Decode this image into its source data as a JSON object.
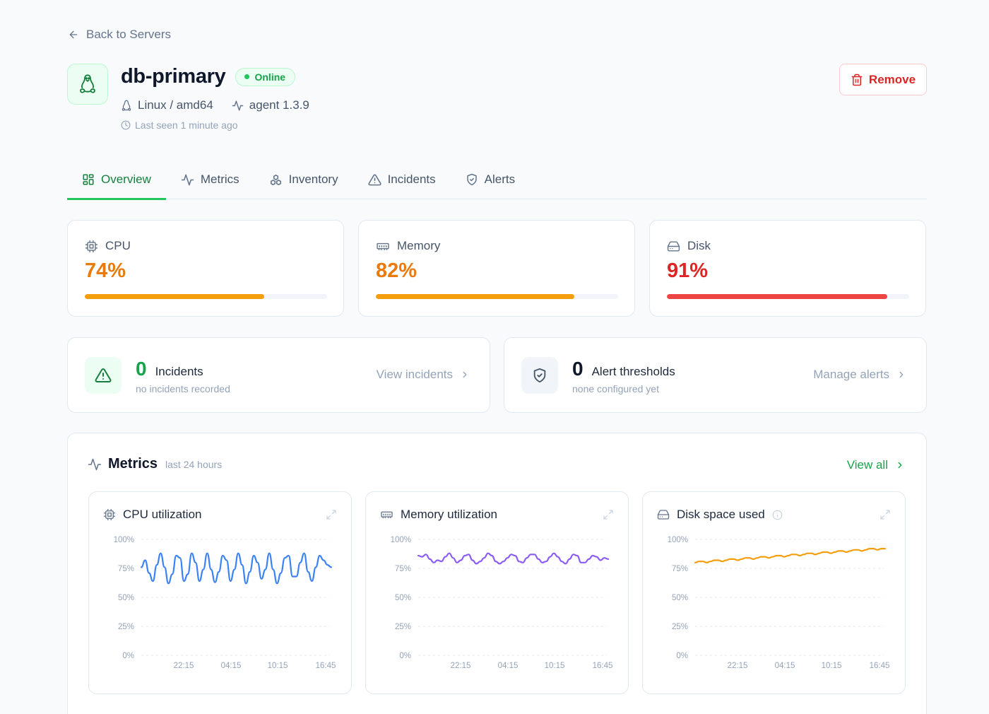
{
  "back_link": "Back to Servers",
  "server": {
    "name": "db-primary",
    "status": "Online",
    "os": "Linux / amd64",
    "agent": "agent 1.3.9",
    "last_seen": "Last seen 1 minute ago"
  },
  "actions": {
    "remove": "Remove"
  },
  "tabs": [
    {
      "label": "Overview",
      "icon": "layout-grid-icon",
      "active": true
    },
    {
      "label": "Metrics",
      "icon": "activity-icon"
    },
    {
      "label": "Inventory",
      "icon": "boxes-icon"
    },
    {
      "label": "Incidents",
      "icon": "alert-triangle-icon"
    },
    {
      "label": "Alerts",
      "icon": "shield-icon"
    }
  ],
  "resources": {
    "cpu": {
      "label": "CPU",
      "value": "74%",
      "percent": 74,
      "color": "#ea7a0c",
      "bar_color": "#f59e0b"
    },
    "memory": {
      "label": "Memory",
      "value": "82%",
      "percent": 82,
      "color": "#ea7a0c",
      "bar_color": "#f59e0b"
    },
    "disk": {
      "label": "Disk",
      "value": "91%",
      "percent": 91,
      "color": "#dc2626",
      "bar_color": "#ef4444"
    }
  },
  "summary": {
    "incidents": {
      "count": "0",
      "title": "Incidents",
      "subtitle": "no incidents recorded",
      "link": "View incidents"
    },
    "alerts": {
      "count": "0",
      "title": "Alert thresholds",
      "subtitle": "none configured yet",
      "link": "Manage alerts"
    }
  },
  "metrics": {
    "title": "Metrics",
    "subtitle": "last 24 hours",
    "view_all": "View all"
  },
  "chart_data": [
    {
      "type": "line",
      "title": "CPU utilization",
      "ylim": [
        0,
        100
      ],
      "y_ticks": [
        "100%",
        "75%",
        "50%",
        "25%",
        "0%"
      ],
      "x_ticks": [
        "22:15",
        "04:15",
        "10:15",
        "16:45"
      ],
      "color": "#3b82f6",
      "series": [
        {
          "values": [
            76,
            82,
            71,
            64,
            78,
            88,
            76,
            62,
            70,
            86,
            84,
            64,
            70,
            88,
            80,
            64,
            74,
            88,
            74,
            63,
            72,
            86,
            82,
            64,
            74,
            88,
            78,
            62,
            72,
            86,
            80,
            66,
            74,
            88,
            74,
            62,
            71,
            84,
            86,
            68,
            68,
            80,
            88,
            72,
            64,
            76,
            86,
            82,
            78,
            76
          ]
        }
      ]
    },
    {
      "type": "line",
      "title": "Memory utilization",
      "ylim": [
        0,
        100
      ],
      "y_ticks": [
        "100%",
        "75%",
        "50%",
        "25%",
        "0%"
      ],
      "x_ticks": [
        "22:15",
        "04:15",
        "10:15",
        "16:45"
      ],
      "color": "#8b5cf6",
      "series": [
        {
          "values": [
            86,
            85,
            87,
            83,
            80,
            82,
            81,
            85,
            88,
            84,
            80,
            82,
            86,
            87,
            82,
            79,
            81,
            84,
            88,
            86,
            81,
            79,
            81,
            84,
            87,
            86,
            81,
            80,
            84,
            87,
            87,
            83,
            80,
            81,
            85,
            88,
            85,
            81,
            79,
            83,
            87,
            86,
            80,
            80,
            83,
            86,
            85,
            82,
            84,
            83
          ]
        }
      ]
    },
    {
      "type": "line",
      "title": "Disk space used",
      "ylim": [
        0,
        100
      ],
      "y_ticks": [
        "100%",
        "75%",
        "50%",
        "25%",
        "0%"
      ],
      "x_ticks": [
        "22:15",
        "04:15",
        "10:15",
        "16:45"
      ],
      "color": "#f59e0b",
      "series": [
        {
          "values": [
            80,
            81,
            81,
            80,
            81,
            82,
            82,
            81,
            82,
            83,
            83,
            82,
            83,
            84,
            84,
            83,
            84,
            85,
            85,
            84,
            85,
            86,
            86,
            85,
            86,
            87,
            87,
            86,
            87,
            88,
            88,
            87,
            88,
            89,
            89,
            88,
            89,
            90,
            90,
            89,
            90,
            91,
            91,
            90,
            91,
            92,
            92,
            91,
            92,
            92
          ]
        }
      ]
    }
  ]
}
